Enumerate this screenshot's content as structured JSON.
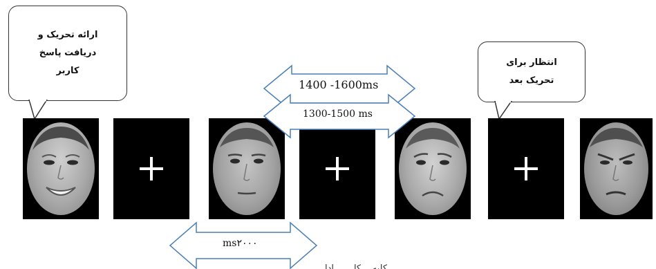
{
  "callouts": {
    "stimulus_lines": [
      "ارائه تحریک و",
      "دریافت پاسخ",
      "کاربر"
    ],
    "wait_lines": [
      "انتظار برای",
      "تحریک بعد"
    ]
  },
  "timings": {
    "top": "1400 -1600ms",
    "middle": "1300-1500 ms",
    "bottom": "ms۲۰۰۰"
  },
  "caption_partial": "کلیه... کا... ...ادا",
  "sequence": [
    {
      "kind": "face",
      "expression": "happy"
    },
    {
      "kind": "fixation-cross"
    },
    {
      "kind": "face",
      "expression": "neutral"
    },
    {
      "kind": "fixation-cross"
    },
    {
      "kind": "face",
      "expression": "sad"
    },
    {
      "kind": "fixation-cross"
    },
    {
      "kind": "face",
      "expression": "angry"
    }
  ],
  "colors": {
    "arrow_outline": "#4a7fb8",
    "panel_background": "#000000",
    "cross": "#ffffff"
  }
}
